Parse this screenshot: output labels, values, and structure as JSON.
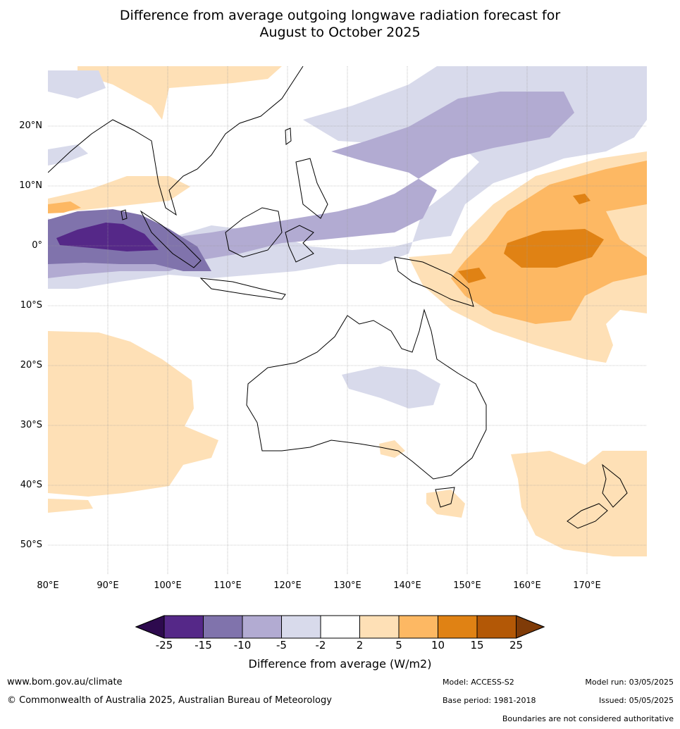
{
  "title": {
    "line1": "Difference from average outgoing longwave radiation forecast for",
    "line2": "August to October 2025"
  },
  "map": {
    "lon_labels": [
      "80°E",
      "90°E",
      "100°E",
      "110°E",
      "120°E",
      "130°E",
      "140°E",
      "150°E",
      "160°E",
      "170°E"
    ],
    "lat_labels": [
      "20°N",
      "10°N",
      "0°",
      "10°S",
      "20°S",
      "30°S",
      "40°S",
      "50°S"
    ]
  },
  "colorbar": {
    "ticks": [
      "-25",
      "-15",
      "-10",
      "-5",
      "-2",
      "2",
      "5",
      "10",
      "15",
      "25"
    ],
    "colors": [
      "#2d0a4e",
      "#552888",
      "#8073ac",
      "#b2abd2",
      "#d8daeb",
      "#ffffff",
      "#fee0b6",
      "#fdb863",
      "#e08214",
      "#b35806",
      "#7f3b08"
    ],
    "label": "Difference from average (W/m2)"
  },
  "footer": {
    "website": "www.bom.gov.au/climate",
    "copyright": "© Commonwealth of Australia 2025, Australian Bureau of Meteorology",
    "model": "Model: ACCESS-S2",
    "model_run": "Model run: 03/05/2025",
    "base_period": "Base period: 1981-2018",
    "issued": "Issued: 05/05/2025",
    "boundaries": "Boundaries are not considered authoritative"
  }
}
